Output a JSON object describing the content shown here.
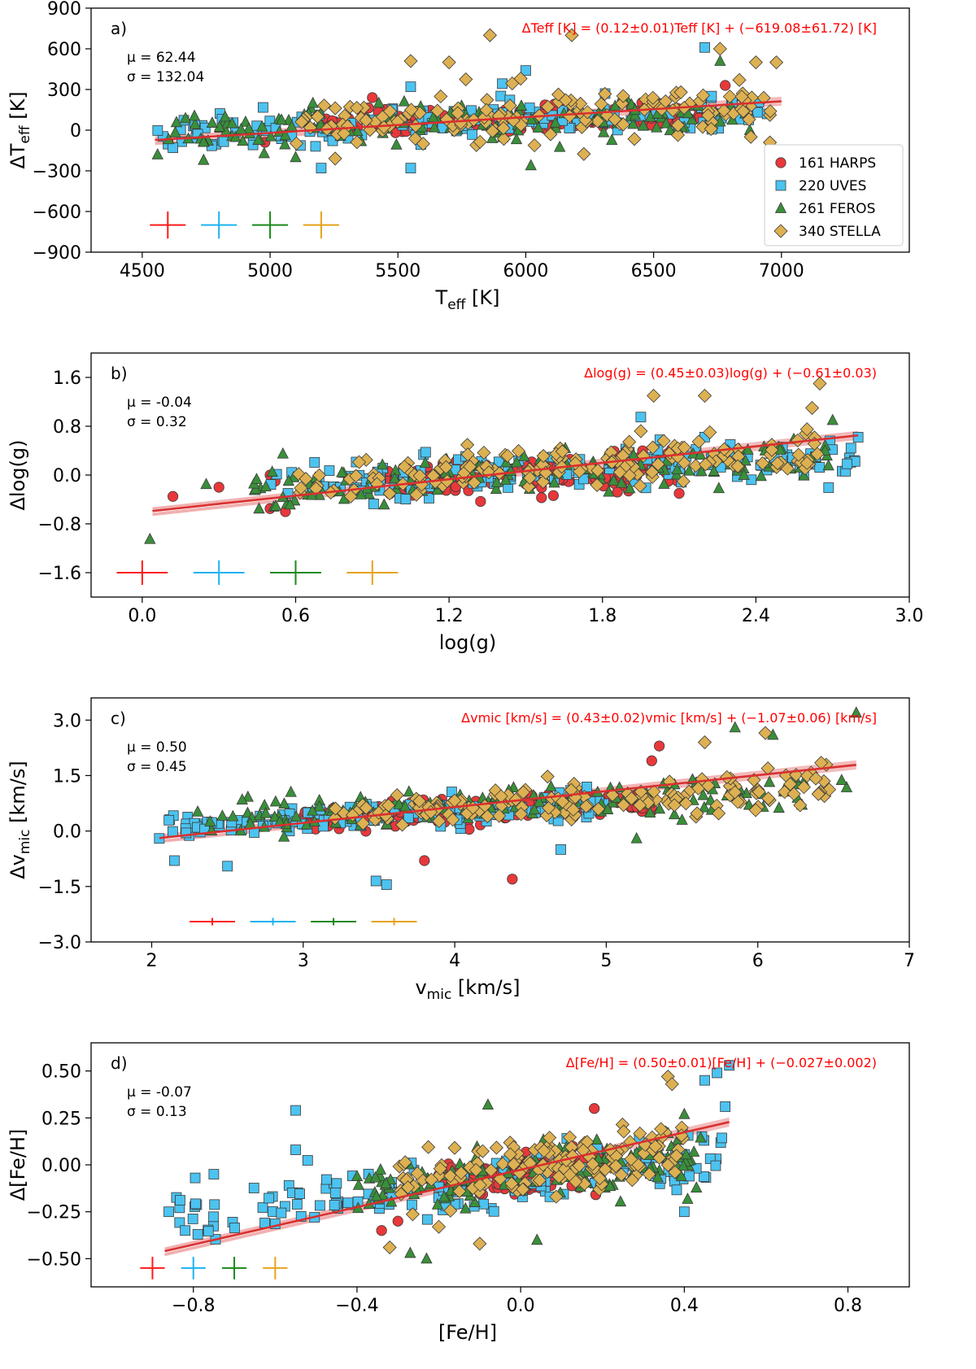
{
  "figure": {
    "colors": {
      "HARPS": "#e8383b",
      "UVES": "#4cc3f0",
      "FEROS": "#3a8f3a",
      "STELLA": "#ddb152",
      "fit": "#d93030",
      "err_HARPS": "#ff1a1a",
      "err_UVES": "#1ab3f0",
      "err_FEROS": "#1a8a1a",
      "err_STELLA": "#e6a21a"
    },
    "legend": [
      {
        "label": "161 HARPS",
        "marker": "circle",
        "color_key": "HARPS"
      },
      {
        "label": "220 UVES",
        "marker": "square",
        "color_key": "UVES"
      },
      {
        "label": "261 FEROS",
        "marker": "triangle",
        "color_key": "FEROS"
      },
      {
        "label": "340 STELLA",
        "marker": "diamond",
        "color_key": "STELLA"
      }
    ]
  },
  "chart_data": [
    {
      "type": "scatter",
      "panel": "a)",
      "xlabel_main": "T",
      "xlabel_sub": "eff",
      "xlabel_tail": " [K]",
      "ylabel_main": "ΔT",
      "ylabel_sub": "eff",
      "ylabel_tail": " [K]",
      "xlim": [
        4300,
        7500
      ],
      "ylim": [
        -900,
        900
      ],
      "xticks": [
        4500,
        5000,
        5500,
        6000,
        6500,
        7000
      ],
      "yticks": [
        900,
        600,
        300,
        0,
        -300,
        -600,
        -900
      ],
      "mu": "μ = 62.44",
      "sigma": "σ = 132.04",
      "fit_equation": "ΔTeff [K] = (0.12±0.01)Teff [K] + (−619.08±61.72) [K]",
      "fit_line": {
        "x": [
          4550,
          7000
        ],
        "y": [
          -73,
          213
        ]
      },
      "error_bars": {
        "x": [
          4600,
          4800,
          5000,
          5200
        ],
        "y": -700,
        "dx": 70,
        "dy": 100
      },
      "series": [
        {
          "name": "HARPS",
          "marker": "circle",
          "count": 161,
          "x_range": [
            5200,
            6700
          ],
          "y_mean": 50,
          "y_spread": 75,
          "extras": [
            [
              5400,
              240
            ],
            [
              6780,
              330
            ],
            [
              4980,
              -90
            ]
          ]
        },
        {
          "name": "UVES",
          "marker": "square",
          "count": 220,
          "x_range": [
            4560,
            6950
          ],
          "y_mean": 35,
          "y_spread": 140,
          "extras": [
            [
              4620,
              -130
            ],
            [
              5200,
              -280
            ],
            [
              5550,
              -280
            ],
            [
              6700,
              610
            ],
            [
              6000,
              440
            ],
            [
              5550,
              320
            ]
          ]
        },
        {
          "name": "FEROS",
          "marker": "triangle",
          "count": 261,
          "x_range": [
            4560,
            6900
          ],
          "y_mean": 45,
          "y_spread": 140,
          "extras": [
            [
              4560,
              -180
            ],
            [
              4740,
              -220
            ],
            [
              6760,
              510
            ],
            [
              6020,
              -260
            ],
            [
              5100,
              -200
            ]
          ]
        },
        {
          "name": "STELLA",
          "marker": "diamond",
          "count": 340,
          "x_range": [
            5100,
            7000
          ],
          "y_mean": 110,
          "y_spread": 170,
          "extras": [
            [
              5700,
              500
            ],
            [
              5860,
              700
            ],
            [
              6180,
              700
            ],
            [
              6760,
              600
            ],
            [
              6900,
              500
            ],
            [
              6980,
              500
            ],
            [
              6880,
              -50
            ],
            [
              5980,
              380
            ],
            [
              5550,
              510
            ]
          ]
        }
      ]
    },
    {
      "type": "scatter",
      "panel": "b)",
      "xlabel_main": "log(g)",
      "xlabel_sub": "",
      "xlabel_tail": "",
      "ylabel_main": "Δlog(g)",
      "ylabel_sub": "",
      "ylabel_tail": "",
      "xlim": [
        -0.2,
        3.0
      ],
      "ylim": [
        -2.0,
        2.0
      ],
      "xticks": [
        0.0,
        0.6,
        1.2,
        1.8,
        2.4,
        3.0
      ],
      "yticks": [
        1.6,
        0.8,
        0.0,
        -0.8,
        -1.6
      ],
      "mu": "μ = -0.04",
      "sigma": "σ = 0.32",
      "fit_equation": "Δlog(g) = (0.45±0.03)log(g) + (−0.61±0.03)",
      "fit_line": {
        "x": [
          0.04,
          2.8
        ],
        "y": [
          -0.59,
          0.65
        ]
      },
      "error_bars": {
        "x": [
          0.0,
          0.3,
          0.6,
          0.9
        ],
        "y": -1.6,
        "dx": 0.1,
        "dy": 0.2
      },
      "series": [
        {
          "name": "HARPS",
          "marker": "circle",
          "count": 161,
          "x_range": [
            0.95,
            2.1
          ],
          "y_mean": -0.05,
          "y_spread": 0.25,
          "extras": [
            [
              0.12,
              -0.35
            ],
            [
              0.3,
              -0.2
            ],
            [
              0.5,
              -0.55
            ],
            [
              0.56,
              -0.6
            ],
            [
              2.1,
              -0.3
            ],
            [
              0.5,
              0.0
            ],
            [
              0.52,
              -0.1
            ]
          ]
        },
        {
          "name": "UVES",
          "marker": "square",
          "count": 220,
          "x_range": [
            0.5,
            2.8
          ],
          "y_mean": 0.05,
          "y_spread": 0.3,
          "extras": [
            [
              2.8,
              0.62
            ],
            [
              2.3,
              0.5
            ],
            [
              1.95,
              0.95
            ],
            [
              0.57,
              -0.3
            ]
          ]
        },
        {
          "name": "FEROS",
          "marker": "triangle",
          "count": 261,
          "x_range": [
            0.4,
            2.7
          ],
          "y_mean": 0.0,
          "y_spread": 0.32,
          "extras": [
            [
              0.03,
              -1.05
            ],
            [
              0.55,
              0.35
            ],
            [
              0.25,
              -0.15
            ],
            [
              2.7,
              0.9
            ]
          ]
        },
        {
          "name": "STELLA",
          "marker": "diamond",
          "count": 340,
          "x_range": [
            0.6,
            2.65
          ],
          "y_mean": 0.15,
          "y_spread": 0.35,
          "extras": [
            [
              2.65,
              1.5
            ],
            [
              2.62,
              1.1
            ],
            [
              2.2,
              1.3
            ],
            [
              2.0,
              1.3
            ],
            [
              2.6,
              0.75
            ],
            [
              2.22,
              0.7
            ],
            [
              1.95,
              0.72
            ],
            [
              2.12,
              0.45
            ]
          ]
        }
      ]
    },
    {
      "type": "scatter",
      "panel": "c)",
      "xlabel_main": "v",
      "xlabel_sub": "mic",
      "xlabel_tail": " [km/s]",
      "ylabel_main": "Δv",
      "ylabel_sub": "mic",
      "ylabel_tail": " [km/s]",
      "xlim": [
        1.6,
        7.0
      ],
      "ylim": [
        -3.0,
        3.6
      ],
      "xticks": [
        2,
        3,
        4,
        5,
        6,
        7
      ],
      "yticks": [
        3.0,
        1.5,
        0.0,
        -1.5,
        -3.0
      ],
      "mu": "μ = 0.50",
      "sigma": "σ = 0.45",
      "fit_equation": "Δvmic [km/s] = (0.43±0.02)vmic [km/s] + (−1.07±0.06) [km/s]",
      "fit_line": {
        "x": [
          2.05,
          6.65
        ],
        "y": [
          -0.19,
          1.79
        ]
      },
      "error_bars": {
        "x": [
          2.4,
          2.8,
          3.2,
          3.6
        ],
        "y": -2.45,
        "dx": 0.15,
        "dy": 0.1
      },
      "series": [
        {
          "name": "HARPS",
          "marker": "circle",
          "count": 161,
          "x_range": [
            3.0,
            5.3
          ],
          "y_mean": 0.45,
          "y_spread": 0.35,
          "extras": [
            [
              3.8,
              -0.8
            ],
            [
              4.38,
              -1.3
            ],
            [
              5.35,
              2.3
            ],
            [
              5.3,
              1.9
            ]
          ]
        },
        {
          "name": "UVES",
          "marker": "square",
          "count": 220,
          "x_range": [
            2.05,
            5.0
          ],
          "y_mean": 0.35,
          "y_spread": 0.35,
          "extras": [
            [
              2.05,
              -0.2
            ],
            [
              2.15,
              -0.8
            ],
            [
              2.5,
              -0.95
            ],
            [
              3.48,
              -1.35
            ],
            [
              3.55,
              -1.45
            ],
            [
              4.7,
              -0.5
            ]
          ]
        },
        {
          "name": "FEROS",
          "marker": "triangle",
          "count": 261,
          "x_range": [
            2.3,
            6.6
          ],
          "y_mean": 0.6,
          "y_spread": 0.45,
          "extras": [
            [
              5.85,
              2.8
            ],
            [
              6.1,
              2.6
            ],
            [
              6.65,
              3.2
            ],
            [
              5.5,
              0.3
            ],
            [
              5.2,
              -0.2
            ]
          ]
        },
        {
          "name": "STELLA",
          "marker": "diamond",
          "count": 340,
          "x_range": [
            3.2,
            6.5
          ],
          "y_mean": 0.65,
          "y_spread": 0.45,
          "extras": [
            [
              6.05,
              2.65
            ],
            [
              5.65,
              2.4
            ],
            [
              6.4,
              1.0
            ],
            [
              5.45,
              0.7
            ]
          ]
        }
      ]
    },
    {
      "type": "scatter",
      "panel": "d)",
      "xlabel_main": "[Fe/H]",
      "xlabel_sub": "",
      "xlabel_tail": "",
      "ylabel_main": "Δ[Fe/H]",
      "ylabel_sub": "",
      "ylabel_tail": "",
      "xlim": [
        -1.05,
        0.95
      ],
      "ylim": [
        -0.65,
        0.65
      ],
      "xticks": [
        -0.8,
        -0.4,
        0.0,
        0.4,
        0.8
      ],
      "yticks": [
        0.5,
        0.25,
        0.0,
        -0.25,
        -0.5
      ],
      "mu": "μ = -0.07",
      "sigma": "σ = 0.13",
      "fit_equation": "Δ[Fe/H] = (0.50±0.01)[Fe/H] + (−0.027±0.002)",
      "fit_line": {
        "x": [
          -0.87,
          0.51
        ],
        "y": [
          -0.46,
          0.228
        ]
      },
      "error_bars": {
        "x": [
          -0.9,
          -0.8,
          -0.7,
          -0.6
        ],
        "y": -0.55,
        "dx": 0.03,
        "dy": 0.06
      },
      "series": [
        {
          "name": "HARPS",
          "marker": "circle",
          "count": 161,
          "x_range": [
            -0.2,
            0.2
          ],
          "y_mean": -0.06,
          "y_spread": 0.09,
          "extras": [
            [
              0.18,
              0.3
            ],
            [
              -0.3,
              -0.3
            ],
            [
              -0.34,
              -0.35
            ]
          ]
        },
        {
          "name": "UVES",
          "marker": "square",
          "count": 220,
          "x_range": [
            -0.85,
            0.5
          ],
          "y_mean": -0.12,
          "y_spread": 0.14,
          "extras": [
            [
              -0.86,
              -0.25
            ],
            [
              -0.82,
              -0.35
            ],
            [
              -0.55,
              0.29
            ],
            [
              -0.75,
              -0.05
            ],
            [
              -0.55,
              0.08
            ],
            [
              0.48,
              0.49
            ],
            [
              0.51,
              0.53
            ],
            [
              0.5,
              0.31
            ],
            [
              0.45,
              0.45
            ],
            [
              0.4,
              -0.25
            ]
          ]
        },
        {
          "name": "FEROS",
          "marker": "triangle",
          "count": 261,
          "x_range": [
            -0.4,
            0.45
          ],
          "y_mean": -0.08,
          "y_spread": 0.13,
          "extras": [
            [
              -0.23,
              -0.5
            ],
            [
              -0.27,
              -0.47
            ],
            [
              0.04,
              -0.4
            ],
            [
              -0.08,
              0.32
            ],
            [
              0.4,
              0.27
            ]
          ]
        },
        {
          "name": "STELLA",
          "marker": "diamond",
          "count": 340,
          "x_range": [
            -0.3,
            0.4
          ],
          "y_mean": 0.0,
          "y_spread": 0.14,
          "extras": [
            [
              0.36,
              0.47
            ],
            [
              0.37,
              0.43
            ],
            [
              -0.32,
              -0.44
            ],
            [
              -0.2,
              -0.33
            ],
            [
              -0.1,
              -0.42
            ]
          ]
        }
      ]
    }
  ]
}
